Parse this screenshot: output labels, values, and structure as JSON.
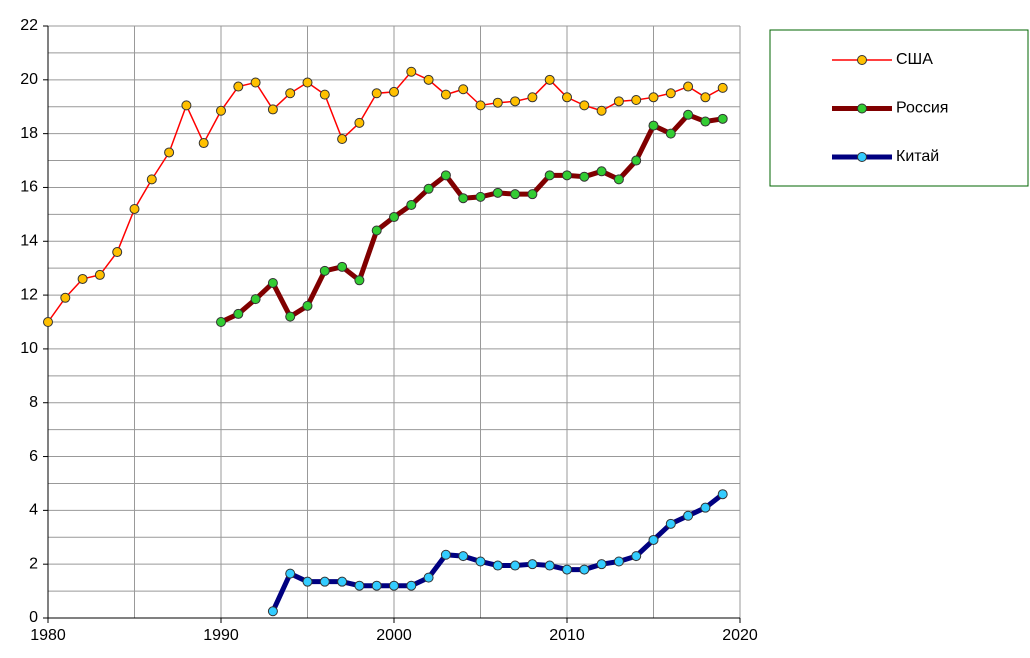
{
  "chart_data": {
    "type": "line",
    "x": [
      1980,
      1981,
      1982,
      1983,
      1984,
      1985,
      1986,
      1987,
      1988,
      1989,
      1990,
      1991,
      1992,
      1993,
      1994,
      1995,
      1996,
      1997,
      1998,
      1999,
      2000,
      2001,
      2002,
      2003,
      2004,
      2005,
      2006,
      2007,
      2008,
      2009,
      2010,
      2011,
      2012,
      2013,
      2014,
      2015,
      2016,
      2017,
      2018,
      2019
    ],
    "series": [
      {
        "name": "США",
        "color": "#ff0000",
        "marker_color": "#ffc000",
        "line_width": 1.5,
        "values": [
          11.0,
          11.9,
          12.6,
          12.75,
          13.6,
          15.2,
          16.3,
          17.3,
          19.05,
          17.65,
          18.85,
          19.75,
          19.9,
          18.9,
          19.5,
          19.9,
          19.45,
          17.8,
          18.4,
          19.5,
          19.55,
          20.3,
          20.0,
          19.45,
          19.65,
          19.05,
          19.15,
          19.2,
          19.35,
          20.0,
          19.35,
          19.05,
          18.85,
          19.2,
          19.25,
          19.35,
          19.5,
          19.75,
          19.35,
          19.7
        ]
      },
      {
        "name": "Россия",
        "color": "#800000",
        "marker_color": "#33cc33",
        "line_width": 5,
        "values": [
          null,
          null,
          null,
          null,
          null,
          null,
          null,
          null,
          null,
          null,
          11.0,
          11.3,
          11.85,
          12.45,
          11.2,
          11.6,
          12.9,
          13.05,
          12.55,
          14.4,
          14.9,
          15.35,
          15.95,
          16.45,
          15.6,
          15.65,
          15.8,
          15.75,
          15.75,
          16.45,
          16.45,
          16.4,
          16.6,
          16.3,
          17.0,
          18.3,
          18.0,
          18.7,
          18.45,
          18.55
        ]
      },
      {
        "name": "Китай",
        "color": "#000080",
        "marker_color": "#33ccff",
        "line_width": 5,
        "values": [
          null,
          null,
          null,
          null,
          null,
          null,
          null,
          null,
          null,
          null,
          null,
          null,
          null,
          0.25,
          1.65,
          1.35,
          1.35,
          1.35,
          1.2,
          1.2,
          1.2,
          1.2,
          1.5,
          2.35,
          2.3,
          2.1,
          1.95,
          1.95,
          2.0,
          1.95,
          1.8,
          1.8,
          2.0,
          2.1,
          2.3,
          2.9,
          3.5,
          3.8,
          4.1,
          4.6
        ]
      }
    ],
    "xlim": [
      1980,
      2020
    ],
    "xticks": [
      1980,
      1990,
      2000,
      2010,
      2020
    ],
    "x_minor_grid": [
      1985,
      1995,
      2005,
      2015
    ],
    "ylim": [
      0,
      22
    ],
    "yticks": [
      0,
      2,
      4,
      6,
      8,
      10,
      12,
      14,
      16,
      18,
      20,
      22
    ],
    "y_minor_grid": [
      1,
      3,
      5,
      7,
      9,
      11,
      13,
      15,
      17,
      19,
      21
    ],
    "grid": true,
    "legend": "right"
  }
}
